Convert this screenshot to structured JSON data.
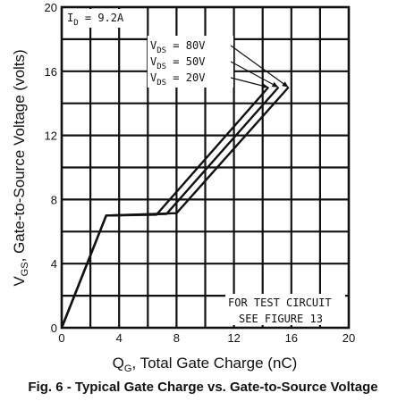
{
  "chart_data": {
    "type": "line",
    "title": "",
    "caption": "Fig. 6 - Typical Gate Charge vs. Gate-to-Source Voltage",
    "xlabel": {
      "prefix": "Q",
      "sub": "G",
      "rest": ", Total Gate Charge (nC)"
    },
    "ylabel": {
      "prefix": "V",
      "sub": "GS",
      "rest": ", Gate-to-Source Voltage (volts)"
    },
    "xlim": [
      0,
      20
    ],
    "ylim": [
      0,
      20
    ],
    "xticks": [
      "0",
      "4",
      "8",
      "12",
      "16",
      "20"
    ],
    "yticks": [
      "0",
      "4",
      "8",
      "12",
      "16",
      "20"
    ],
    "grid": true,
    "annotation_id": {
      "prefix": "I",
      "sub": "D",
      "rest": " = 9.2A"
    },
    "annotation_test": [
      "FOR TEST CIRCUIT",
      "SEE FIGURE 13"
    ],
    "series": [
      {
        "name": "80V",
        "label": {
          "prefix": "V",
          "sub": "DS",
          "rest": " =  80V"
        },
        "x": [
          0,
          3.1,
          8.0,
          15.8
        ],
        "y": [
          0,
          7.0,
          7.15,
          15.0
        ]
      },
      {
        "name": "50V",
        "label": {
          "prefix": "V",
          "sub": "DS",
          "rest": " =  50V"
        },
        "x": [
          0,
          3.1,
          7.3,
          15.1
        ],
        "y": [
          0,
          7.0,
          7.1,
          15.0
        ]
      },
      {
        "name": "20V",
        "label": {
          "prefix": "V",
          "sub": "DS",
          "rest": " =  20V"
        },
        "x": [
          0,
          3.1,
          6.6,
          14.4
        ],
        "y": [
          0,
          7.0,
          7.05,
          15.0
        ]
      }
    ]
  }
}
